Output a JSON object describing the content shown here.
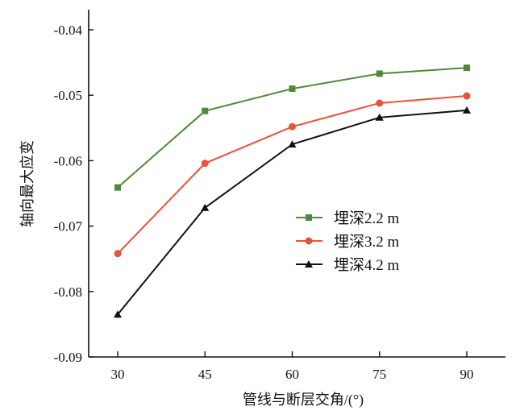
{
  "chart_data": {
    "type": "line",
    "title": "",
    "xlabel": "管线与断层交角/(°)",
    "ylabel": "轴向最大应变",
    "x": [
      30,
      45,
      60,
      75,
      90
    ],
    "xticks": [
      "30",
      "45",
      "60",
      "75",
      "90"
    ],
    "yticks": [
      "-0.04",
      "-0.05",
      "-0.06",
      "-0.07",
      "-0.08",
      "-0.09"
    ],
    "ylim": [
      -0.09,
      -0.04
    ],
    "xlim": [
      22,
      100
    ],
    "grid": false,
    "legend_position": "center-right",
    "series": [
      {
        "name": "埋深2.2 m",
        "color": "#4f8a3a",
        "marker": "square",
        "values": [
          -0.0641,
          -0.0524,
          -0.049,
          -0.0467,
          -0.0458
        ]
      },
      {
        "name": "埋深3.2 m",
        "color": "#e8533a",
        "marker": "circle",
        "values": [
          -0.0742,
          -0.0604,
          -0.0548,
          -0.0512,
          -0.0501
        ]
      },
      {
        "name": "埋深4.2 m",
        "color": "#111111",
        "marker": "triangle",
        "values": [
          -0.0835,
          -0.0672,
          -0.0575,
          -0.0534,
          -0.0523
        ]
      }
    ]
  }
}
